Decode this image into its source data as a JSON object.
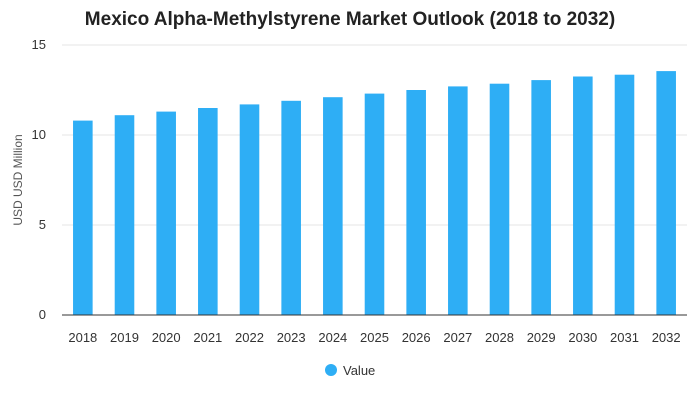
{
  "chart_data": {
    "type": "bar",
    "title": "Mexico Alpha-Methylstyrene Market Outlook (2018 to 2032)",
    "xlabel": "",
    "ylabel": "USD USD Million",
    "ylim": [
      0,
      15
    ],
    "yticks": [
      "0",
      "5",
      "10",
      "15"
    ],
    "grid": true,
    "legend_position": "bottom",
    "categories": [
      "2018",
      "2019",
      "2020",
      "2021",
      "2022",
      "2023",
      "2024",
      "2025",
      "2026",
      "2027",
      "2028",
      "2029",
      "2030",
      "2031",
      "2032"
    ],
    "series": [
      {
        "name": "Value",
        "color": "#2eaef5",
        "values": [
          10.8,
          11.1,
          11.3,
          11.5,
          11.7,
          11.9,
          12.1,
          12.3,
          12.5,
          12.7,
          12.85,
          13.05,
          13.25,
          13.35,
          13.55
        ]
      }
    ]
  }
}
